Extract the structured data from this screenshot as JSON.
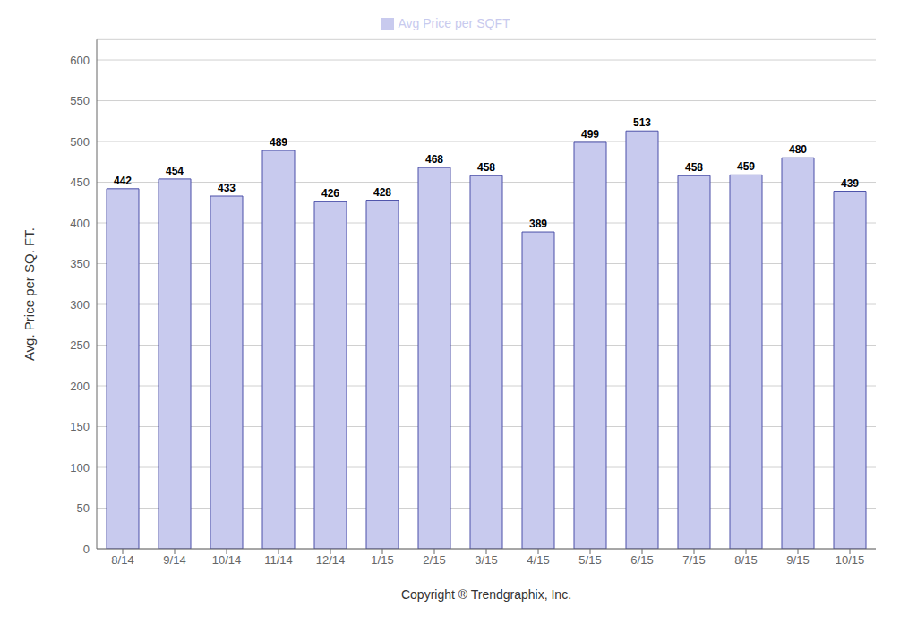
{
  "chart_data": {
    "type": "bar",
    "categories": [
      "8/14",
      "9/14",
      "10/14",
      "11/14",
      "12/14",
      "1/15",
      "2/15",
      "3/15",
      "4/15",
      "5/15",
      "6/15",
      "7/15",
      "8/15",
      "9/15",
      "10/15"
    ],
    "series": [
      {
        "name": "Avg Price per SQFT",
        "color": "#c8caee",
        "values": [
          442,
          454,
          433,
          489,
          426,
          428,
          468,
          458,
          389,
          499,
          513,
          458,
          459,
          480,
          439
        ]
      }
    ],
    "xlabel": "Copyright ® Trendgraphix, Inc.",
    "ylabel": "Avg. Price per SQ. FT.",
    "ylim": [
      0,
      625
    ],
    "yticks": [
      0,
      50,
      100,
      150,
      200,
      250,
      300,
      350,
      400,
      450,
      500,
      550,
      600
    ],
    "grid": true,
    "legend": "top",
    "data_labels": true
  }
}
